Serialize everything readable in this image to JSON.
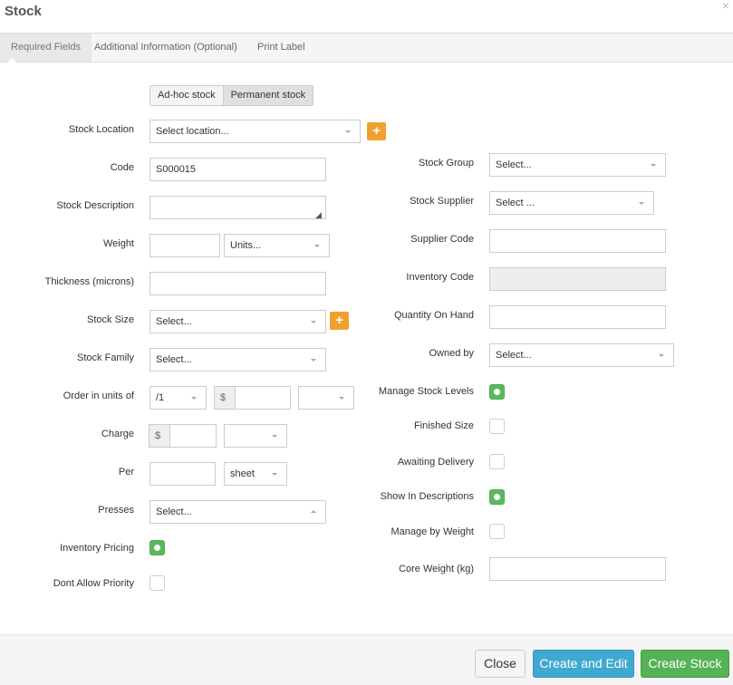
{
  "title": "Stock",
  "close_glyph": "×",
  "tabs": [
    "Required Fields",
    "Additional Information (Optional)",
    "Print Label"
  ],
  "stock_type": {
    "options": [
      "Ad-hoc stock",
      "Permanent stock"
    ],
    "selected": "Permanent stock"
  },
  "left": {
    "stock_location": {
      "label": "Stock Location",
      "value": "Select location..."
    },
    "code": {
      "label": "Code",
      "value": "S000015"
    },
    "description": {
      "label": "Stock Description",
      "value": ""
    },
    "weight": {
      "label": "Weight",
      "value": "",
      "units": "Units..."
    },
    "thickness": {
      "label": "Thickness (microns)",
      "value": ""
    },
    "stock_size": {
      "label": "Stock Size",
      "value": "Select..."
    },
    "stock_family": {
      "label": "Stock Family",
      "value": "Select..."
    },
    "order_units": {
      "label": "Order in units of",
      "value": "/1",
      "currency": "$",
      "price": "",
      "unit": ""
    },
    "charge": {
      "label": "Charge",
      "currency": "$",
      "value": "",
      "unit": ""
    },
    "per": {
      "label": "Per",
      "value": "",
      "unit": "sheet"
    },
    "presses": {
      "label": "Presses",
      "value": "Select..."
    },
    "inventory_pricing": {
      "label": "Inventory Pricing",
      "checked": true
    },
    "dont_allow_priority": {
      "label": "Dont Allow Priority",
      "checked": false
    }
  },
  "right": {
    "stock_group": {
      "label": "Stock Group",
      "value": "Select..."
    },
    "stock_supplier": {
      "label": "Stock Supplier",
      "value": "Select ..."
    },
    "supplier_code": {
      "label": "Supplier Code",
      "value": ""
    },
    "inventory_code": {
      "label": "Inventory Code",
      "value": ""
    },
    "quantity_on_hand": {
      "label": "Quantity On Hand",
      "value": ""
    },
    "owned_by": {
      "label": "Owned by",
      "value": "Select..."
    },
    "manage_stock_levels": {
      "label": "Manage Stock Levels",
      "checked": true
    },
    "finished_size": {
      "label": "Finished Size",
      "checked": false
    },
    "awaiting_delivery": {
      "label": "Awaiting Delivery",
      "checked": false
    },
    "show_in_descriptions": {
      "label": "Show In Descriptions",
      "checked": true
    },
    "manage_by_weight": {
      "label": "Manage by Weight",
      "checked": false
    },
    "core_weight": {
      "label": "Core Weight (kg)",
      "value": ""
    }
  },
  "footer": {
    "close": "Close",
    "create_edit": "Create and Edit",
    "create": "Create Stock"
  },
  "colors": {
    "accent_orange": "#f0a030",
    "primary_blue": "#39a6cc",
    "success_green": "#5cb85c"
  }
}
